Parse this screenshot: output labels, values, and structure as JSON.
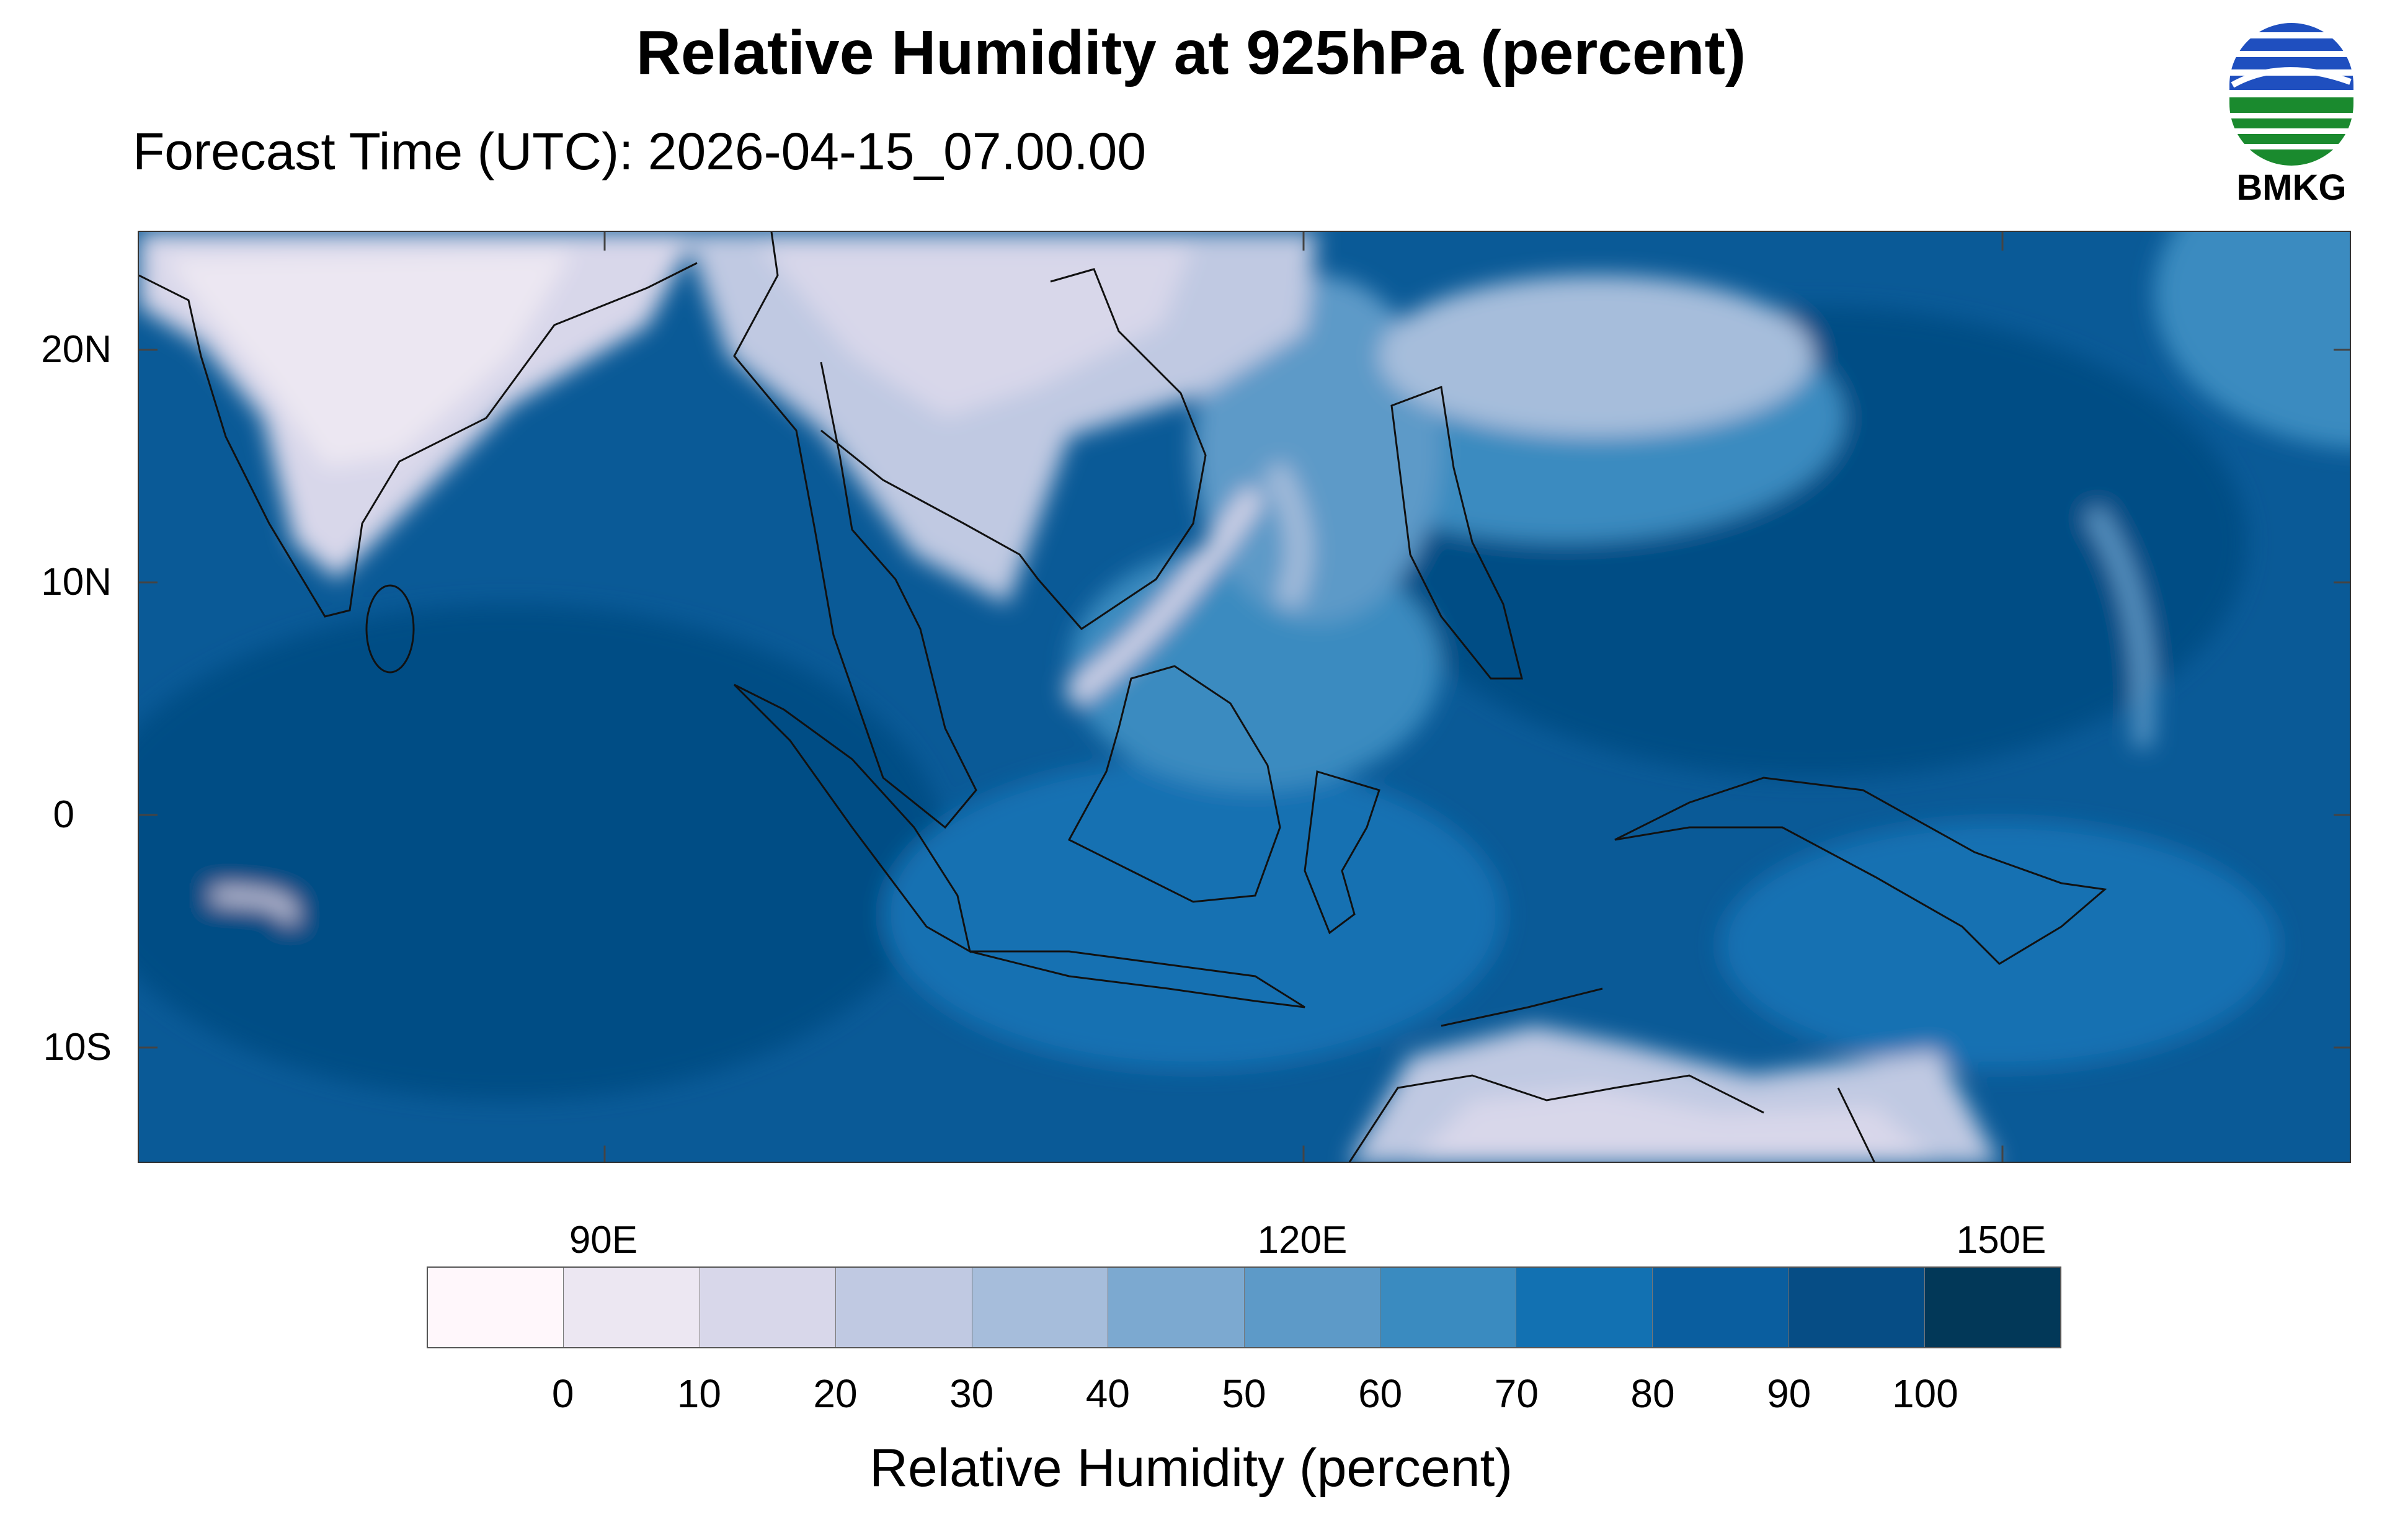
{
  "title": "Relative Humidity at 925hPa (percent)",
  "subtitle": "Forecast Time (UTC): 2026-04-15_07.00.00",
  "logo": {
    "text": "BMKG",
    "icon": "bmkg-logo",
    "colors": [
      "#1f4fbf",
      "#1a8a2e"
    ]
  },
  "map": {
    "region": "Indian Ocean, Maritime Continent and Western Pacific",
    "lon_range": [
      70,
      165
    ],
    "lat_range": [
      -15,
      25
    ],
    "lat_ticks": [
      "20N",
      "10N",
      "0",
      "10S"
    ],
    "lon_ticks": [
      "90E",
      "120E",
      "150E"
    ],
    "background_color": "#0a5a97"
  },
  "colorbar": {
    "title": "Relative Humidity (percent)",
    "levels": [
      "0",
      "10",
      "20",
      "30",
      "40",
      "50",
      "60",
      "70",
      "80",
      "90",
      "100"
    ],
    "colors": [
      "#fff7fb",
      "#ece7f2",
      "#d8d7ea",
      "#c0c9e2",
      "#a6bddb",
      "#7ca9d0",
      "#5d9ac8",
      "#3a8bc0",
      "#1271b2",
      "#0a5e9f",
      "#064d85",
      "#023858"
    ]
  }
}
